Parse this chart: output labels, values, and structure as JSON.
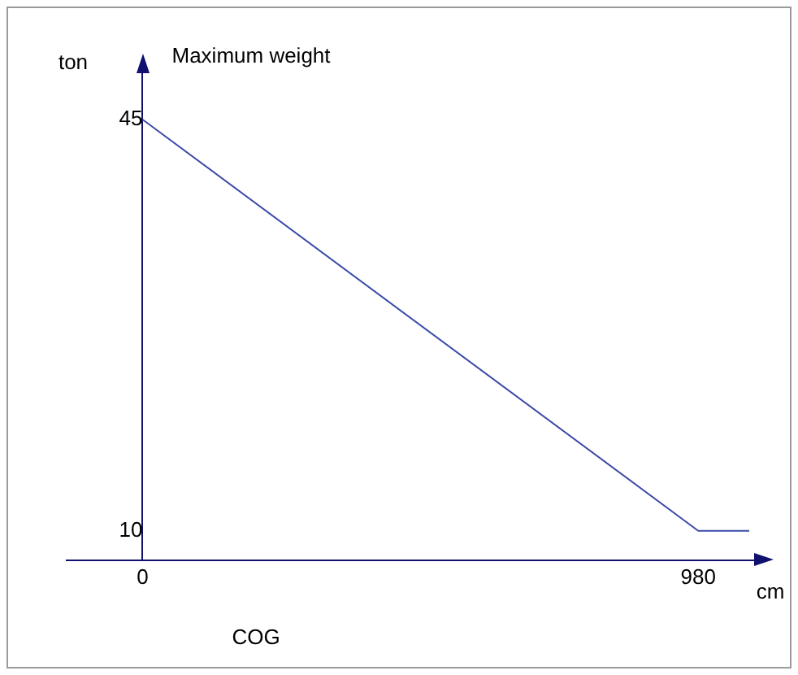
{
  "chart_data": {
    "type": "line",
    "title": "Maximum weight",
    "xlabel": "COG",
    "ylabel": "ton",
    "annotations": [
      "cm"
    ],
    "x": [
      0,
      980,
      1070
    ],
    "series": [
      {
        "color": "#3a4aa8",
        "values": [
          45,
          10,
          10
        ]
      }
    ],
    "xlim": [
      -134,
      1090
    ],
    "ylim": [
      7.5,
      49.5
    ],
    "xticks": [
      0,
      980
    ],
    "yticks": [
      45,
      10
    ],
    "grid": false,
    "legend": false,
    "marker": "none",
    "line_style": "solid"
  }
}
